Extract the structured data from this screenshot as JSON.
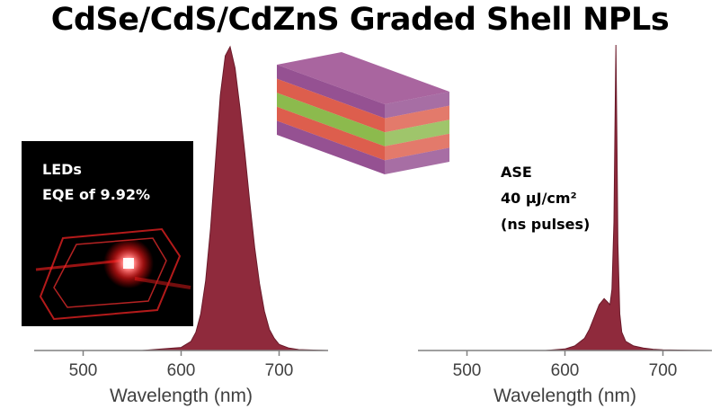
{
  "title": "CdSe/CdS/CdZnS Graded Shell NPLs",
  "colors": {
    "spectrum": "#8f2a3c",
    "spectrum_edge": "#6a1a2a",
    "axis": "#808080",
    "photo_bg": "#000000",
    "led_glow": "#ff2a2a"
  },
  "inset_photo": {
    "line1": "LEDs",
    "line2": "EQE of 9.92%"
  },
  "ase_annotation": {
    "line1": "ASE",
    "line2": "40 μJ/cm²",
    "line3": "(ns pulses)"
  },
  "nanoplatelet_graphic": {
    "icon": "layered-nanoplatelet-icon",
    "layer_colors": [
      "#8a3e86",
      "#d94d3a",
      "#7fb23a",
      "#d94d3a",
      "#8a3e86"
    ]
  },
  "chart_data": [
    {
      "type": "area",
      "title": "",
      "xlabel": "Wavelength (nm)",
      "ylabel": "",
      "xlim": [
        450,
        750
      ],
      "xticks": [
        500,
        600,
        700
      ],
      "ylim": [
        0,
        1
      ],
      "grid": false,
      "series": [
        {
          "x": [
            450,
            560,
            600,
            610,
            615,
            620,
            625,
            630,
            635,
            640,
            645,
            650,
            655,
            660,
            665,
            670,
            675,
            680,
            685,
            690,
            695,
            700,
            710,
            720,
            750
          ],
          "values": [
            0,
            0,
            0.01,
            0.03,
            0.06,
            0.12,
            0.23,
            0.4,
            0.62,
            0.84,
            0.97,
            1.0,
            0.93,
            0.8,
            0.65,
            0.49,
            0.34,
            0.22,
            0.13,
            0.07,
            0.04,
            0.02,
            0.008,
            0.003,
            0
          ]
        }
      ]
    },
    {
      "type": "area",
      "title": "",
      "xlabel": "Wavelength (nm)",
      "ylabel": "",
      "xlim": [
        450,
        750
      ],
      "xticks": [
        500,
        600,
        700
      ],
      "ylim": [
        0,
        1
      ],
      "grid": false,
      "series": [
        {
          "x": [
            450,
            580,
            600,
            610,
            620,
            625,
            630,
            635,
            640,
            643,
            646,
            648,
            650,
            651,
            652,
            653,
            654,
            656,
            658,
            662,
            670,
            680,
            690,
            700,
            750
          ],
          "values": [
            0,
            0,
            0.005,
            0.015,
            0.04,
            0.07,
            0.11,
            0.15,
            0.17,
            0.16,
            0.15,
            0.2,
            0.42,
            0.72,
            1.0,
            0.7,
            0.35,
            0.12,
            0.06,
            0.03,
            0.015,
            0.008,
            0.004,
            0.002,
            0
          ]
        }
      ]
    }
  ]
}
